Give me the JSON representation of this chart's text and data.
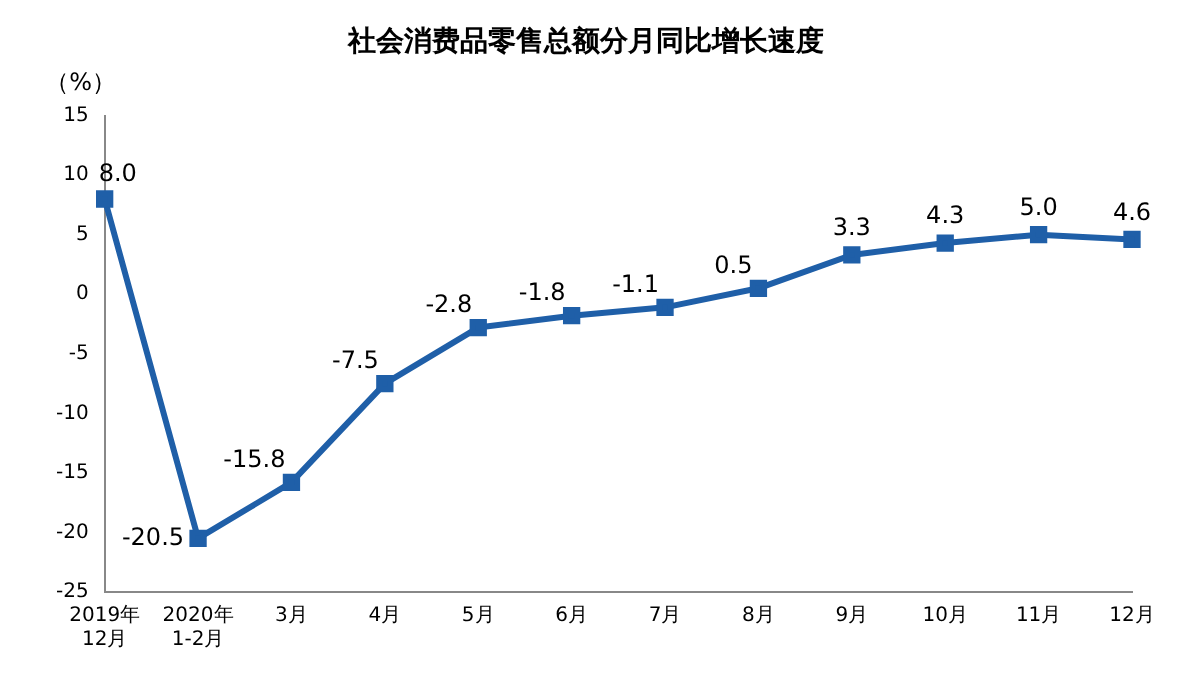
{
  "chart_data": {
    "type": "line",
    "title": "社会消费品零售总额分月同比增长速度",
    "ylabel": "（%）",
    "categories": [
      "2019年\n12月",
      "2020年\n1-2月",
      "3月",
      "4月",
      "5月",
      "6月",
      "7月",
      "8月",
      "9月",
      "10月",
      "11月",
      "12月"
    ],
    "series": [
      {
        "color": "#1f5fa8",
        "values": [
          8.0,
          -20.5,
          -15.8,
          -7.5,
          -2.8,
          -1.8,
          -1.1,
          0.5,
          3.3,
          4.3,
          5.0,
          4.6
        ],
        "value_labels": [
          "8.0",
          "-20.5",
          "-15.8",
          "-7.5",
          "-2.8",
          "-1.8",
          "-1.1",
          "0.5",
          "3.3",
          "4.3",
          "5.0",
          "4.6"
        ]
      }
    ],
    "ylim": [
      -25,
      15
    ],
    "yticks": [
      -25,
      -20,
      -15,
      -10,
      -5,
      0,
      5,
      10,
      15
    ],
    "grid": false,
    "legend": false,
    "marker": "square",
    "line_style": "solid"
  }
}
